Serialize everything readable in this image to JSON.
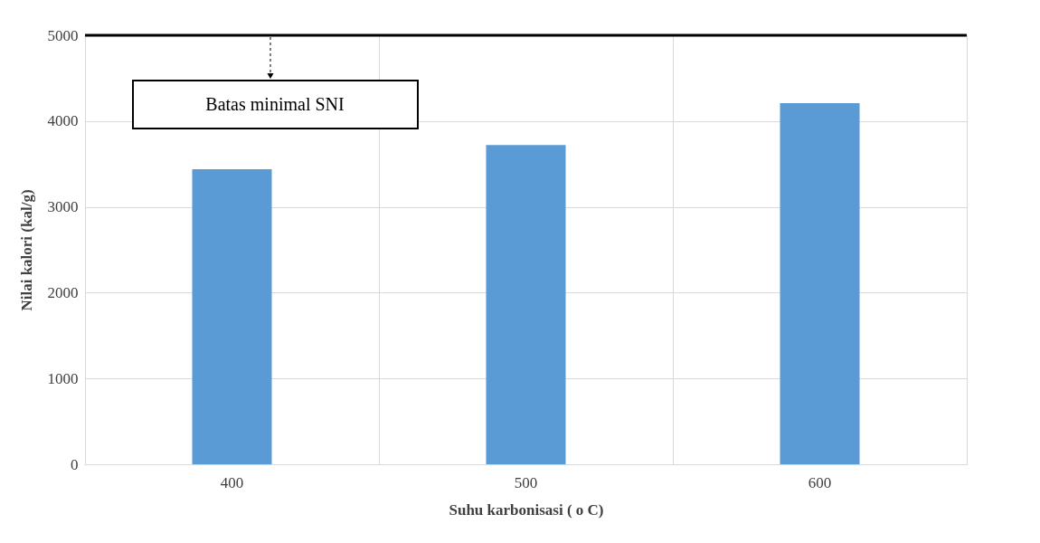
{
  "chart_data": {
    "type": "bar",
    "xlabel": "Suhu karbonisasi ( o C)",
    "ylabel": "Nilai kalori (kal/g)",
    "categories": [
      "400",
      "500",
      "600"
    ],
    "values": [
      3440,
      3720,
      4210
    ],
    "color": "#5b9bd5",
    "ylim": [
      0,
      5000
    ],
    "yticks": [
      0,
      1000,
      2000,
      3000,
      4000,
      5000
    ],
    "grid": true,
    "ref_lines": [
      {
        "axis": "y",
        "value": 5000,
        "label": "Batas minimal SNI",
        "color": "#000000"
      }
    ]
  }
}
